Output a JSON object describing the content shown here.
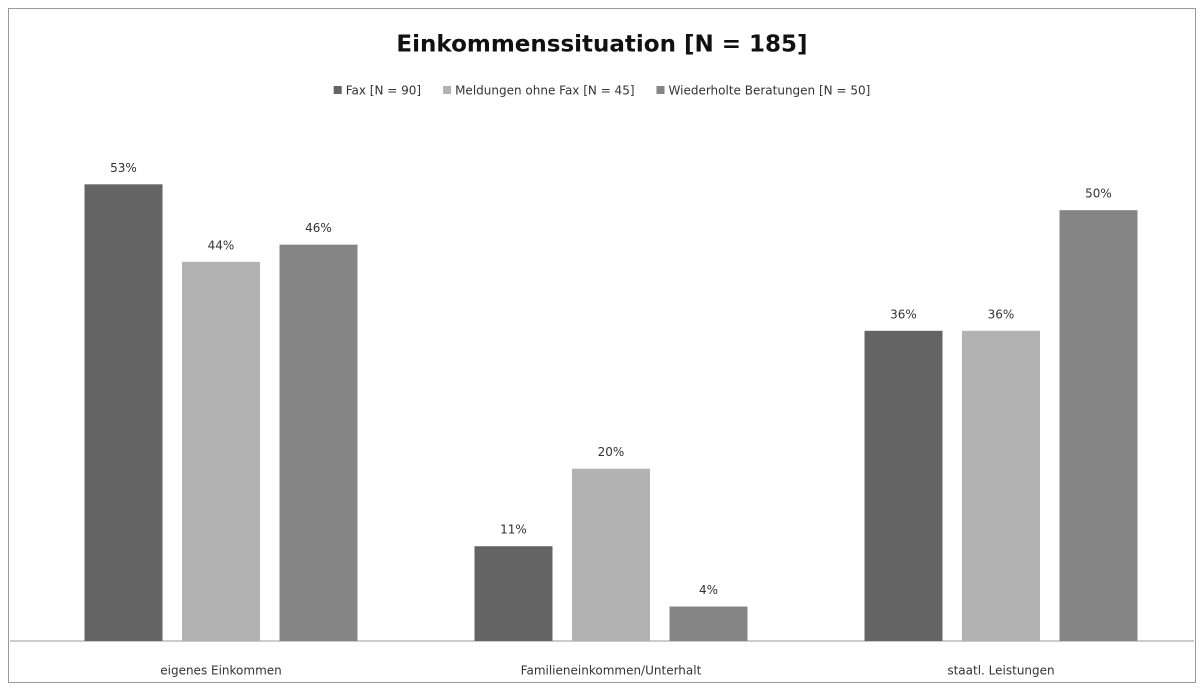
{
  "chart_data": {
    "type": "bar",
    "title": "Einkommenssituation  [N = 185]",
    "categories": [
      "eigenes Einkommen",
      "Familieneinkommen/Unterhalt",
      "staatl. Leistungen"
    ],
    "series": [
      {
        "name": "Fax [N = 90]",
        "color": "#646464",
        "values": [
          53,
          11,
          36
        ],
        "value_labels": [
          "53%",
          "11%",
          "36%"
        ]
      },
      {
        "name": "Meldungen ohne Fax [N = 45]",
        "color": "#b2b2b2",
        "values": [
          44,
          20,
          36
        ],
        "value_labels": [
          "44%",
          "20%",
          "36%"
        ]
      },
      {
        "name": "Wiederholte Beratungen [N = 50]",
        "color": "#858585",
        "values": [
          46,
          4,
          50
        ],
        "value_labels": [
          "46%",
          "4%",
          "50%"
        ]
      }
    ],
    "ylim": [
      0,
      60
    ],
    "legend": "top"
  }
}
